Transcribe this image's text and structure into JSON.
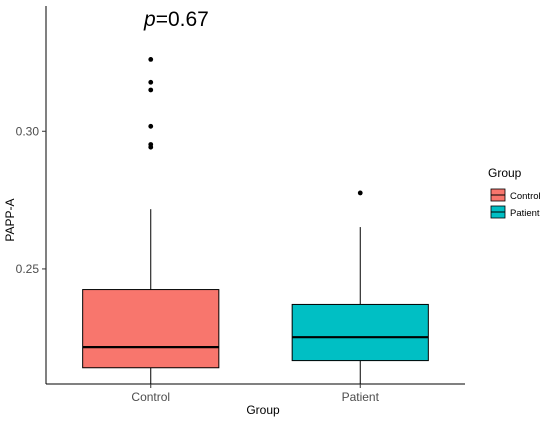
{
  "chart_data": {
    "type": "boxplot",
    "xlabel": "Group",
    "ylabel": "PAPP-A",
    "annotation": {
      "italic": "p",
      "rest": "=0.67"
    },
    "ylim": [
      0.2082,
      0.3455
    ],
    "yticks": [
      0.25,
      0.3
    ],
    "ytick_labels": [
      "0.25",
      "0.30"
    ],
    "categories": [
      "Control",
      "Patient"
    ],
    "boxes": [
      {
        "category": "Control",
        "color": "#F8766D",
        "whisker_low": 0.2082,
        "q1": 0.2141,
        "median": 0.2216,
        "q3": 0.2425,
        "whisker_high": 0.2717,
        "outliers": [
          0.3261,
          0.3178,
          0.315,
          0.3018,
          0.2952,
          0.2942
        ]
      },
      {
        "category": "Patient",
        "color": "#00BFC4",
        "whisker_low": 0.2082,
        "q1": 0.2167,
        "median": 0.2252,
        "q3": 0.2371,
        "whisker_high": 0.2652,
        "outliers": [
          0.2776
        ]
      }
    ],
    "legend": {
      "title": "Group",
      "position": "right",
      "items": [
        {
          "label": "Control",
          "color": "#F8766D"
        },
        {
          "label": "Patient",
          "color": "#00BFC4"
        }
      ]
    },
    "grid": false
  }
}
